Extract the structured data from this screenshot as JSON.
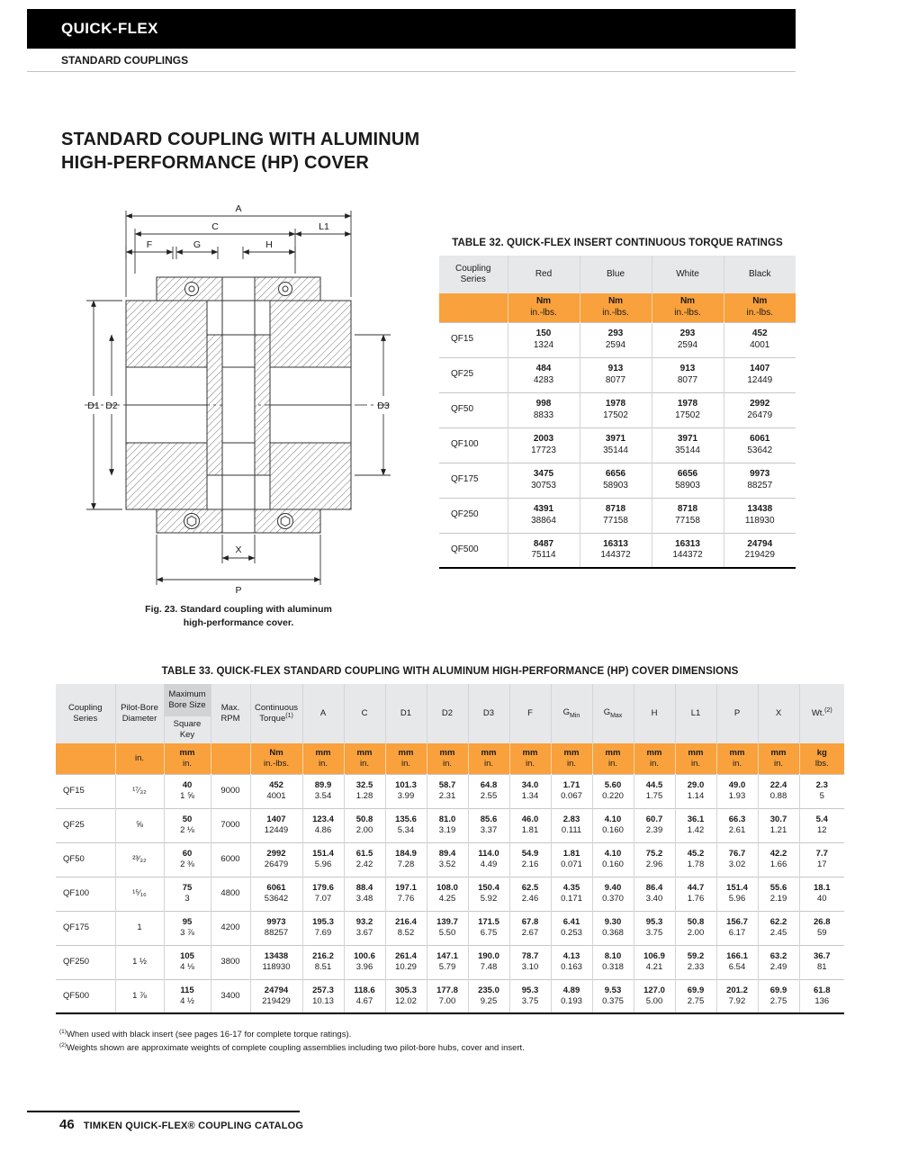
{
  "colors": {
    "accent": "#F9A13C",
    "header_gray": "#E7E8E9",
    "dark_gray": "#D2D3D4",
    "bar_black": "#000000"
  },
  "page": {
    "brand": "QUICK-FLEX",
    "section": "STANDARD COUPLINGS",
    "title_line1": "STANDARD COUPLING WITH ALUMINUM",
    "title_line2": "HIGH-PERFORMANCE (HP) COVER",
    "figure_caption_line1": "Fig. 23. Standard coupling with aluminum",
    "figure_caption_line2": "high-performance cover.",
    "footer_page_number": "46",
    "footer_text": "TIMKEN QUICK-FLEX® COUPLING CATALOG"
  },
  "drawing": {
    "labels": {
      "A": "A",
      "C": "C",
      "L1": "L1",
      "F": "F",
      "G": "G",
      "H": "H",
      "D1": "D1",
      "D2": "D2",
      "D3": "D3",
      "X": "X",
      "P": "P"
    }
  },
  "table32": {
    "title": "TABLE 32. QUICK-FLEX INSERT CONTINUOUS TORQUE RATINGS",
    "series_header": "Coupling Series",
    "color_headers": [
      "Red",
      "Blue",
      "White",
      "Black"
    ],
    "unit_metric": "Nm",
    "unit_imperial": "in.-lbs.",
    "rows": [
      {
        "series": "QF15",
        "values": [
          [
            "150",
            "1324"
          ],
          [
            "293",
            "2594"
          ],
          [
            "293",
            "2594"
          ],
          [
            "452",
            "4001"
          ]
        ]
      },
      {
        "series": "QF25",
        "values": [
          [
            "484",
            "4283"
          ],
          [
            "913",
            "8077"
          ],
          [
            "913",
            "8077"
          ],
          [
            "1407",
            "12449"
          ]
        ]
      },
      {
        "series": "QF50",
        "values": [
          [
            "998",
            "8833"
          ],
          [
            "1978",
            "17502"
          ],
          [
            "1978",
            "17502"
          ],
          [
            "2992",
            "26479"
          ]
        ]
      },
      {
        "series": "QF100",
        "values": [
          [
            "2003",
            "17723"
          ],
          [
            "3971",
            "35144"
          ],
          [
            "3971",
            "35144"
          ],
          [
            "6061",
            "53642"
          ]
        ]
      },
      {
        "series": "QF175",
        "values": [
          [
            "3475",
            "30753"
          ],
          [
            "6656",
            "58903"
          ],
          [
            "6656",
            "58903"
          ],
          [
            "9973",
            "88257"
          ]
        ]
      },
      {
        "series": "QF250",
        "values": [
          [
            "4391",
            "38864"
          ],
          [
            "8718",
            "77158"
          ],
          [
            "8718",
            "77158"
          ],
          [
            "13438",
            "118930"
          ]
        ]
      },
      {
        "series": "QF500",
        "values": [
          [
            "8487",
            "75114"
          ],
          [
            "16313",
            "144372"
          ],
          [
            "16313",
            "144372"
          ],
          [
            "24794",
            "219429"
          ]
        ]
      }
    ]
  },
  "table33": {
    "title": "TABLE 33. QUICK-FLEX STANDARD COUPLING WITH ALUMINUM HIGH-PERFORMANCE (HP) COVER DIMENSIONS",
    "headers": {
      "series": "Coupling Series",
      "pilot": "Pilot-Bore Diameter",
      "bore_top": "Maximum Bore Size",
      "bore_bottom": "Square Key",
      "rpm": "Max. RPM",
      "torque": "Continuous Torque",
      "torque_sup": "(1)",
      "dims": [
        {
          "t": "A"
        },
        {
          "t": "C"
        },
        {
          "t": "D1"
        },
        {
          "t": "D2"
        },
        {
          "t": "D3"
        },
        {
          "t": "F"
        },
        {
          "t": "G",
          "sub": "Min"
        },
        {
          "t": "G",
          "sub": "Max"
        },
        {
          "t": "H"
        },
        {
          "t": "L1"
        },
        {
          "t": "P"
        },
        {
          "t": "X"
        }
      ],
      "wt": "Wt.",
      "wt_sup": "(2)"
    },
    "units": {
      "pilot": "in.",
      "metric": "mm",
      "imperial": "in.",
      "torque_metric": "Nm",
      "torque_imperial": "in.-lbs.",
      "wt_metric": "kg",
      "wt_imperial": "lbs."
    },
    "rows": [
      {
        "series": "QF15",
        "pilot": "¹⁷⁄₃₂",
        "bore": [
          "40",
          "1 ⅝"
        ],
        "rpm": "9000",
        "torque": [
          "452",
          "4001"
        ],
        "dims": [
          [
            "89.9",
            "3.54"
          ],
          [
            "32.5",
            "1.28"
          ],
          [
            "101.3",
            "3.99"
          ],
          [
            "58.7",
            "2.31"
          ],
          [
            "64.8",
            "2.55"
          ],
          [
            "34.0",
            "1.34"
          ],
          [
            "1.71",
            "0.067"
          ],
          [
            "5.60",
            "0.220"
          ],
          [
            "44.5",
            "1.75"
          ],
          [
            "29.0",
            "1.14"
          ],
          [
            "49.0",
            "1.93"
          ],
          [
            "22.4",
            "0.88"
          ]
        ],
        "wt": [
          "2.3",
          "5"
        ]
      },
      {
        "series": "QF25",
        "pilot": "⅝",
        "bore": [
          "50",
          "2 ⅛"
        ],
        "rpm": "7000",
        "torque": [
          "1407",
          "12449"
        ],
        "dims": [
          [
            "123.4",
            "4.86"
          ],
          [
            "50.8",
            "2.00"
          ],
          [
            "135.6",
            "5.34"
          ],
          [
            "81.0",
            "3.19"
          ],
          [
            "85.6",
            "3.37"
          ],
          [
            "46.0",
            "1.81"
          ],
          [
            "2.83",
            "0.111"
          ],
          [
            "4.10",
            "0.160"
          ],
          [
            "60.7",
            "2.39"
          ],
          [
            "36.1",
            "1.42"
          ],
          [
            "66.3",
            "2.61"
          ],
          [
            "30.7",
            "1.21"
          ]
        ],
        "wt": [
          "5.4",
          "12"
        ]
      },
      {
        "series": "QF50",
        "pilot": "²³⁄₃₂",
        "bore": [
          "60",
          "2 ⅜"
        ],
        "rpm": "6000",
        "torque": [
          "2992",
          "26479"
        ],
        "dims": [
          [
            "151.4",
            "5.96"
          ],
          [
            "61.5",
            "2.42"
          ],
          [
            "184.9",
            "7.28"
          ],
          [
            "89.4",
            "3.52"
          ],
          [
            "114.0",
            "4.49"
          ],
          [
            "54.9",
            "2.16"
          ],
          [
            "1.81",
            "0.071"
          ],
          [
            "4.10",
            "0.160"
          ],
          [
            "75.2",
            "2.96"
          ],
          [
            "45.2",
            "1.78"
          ],
          [
            "76.7",
            "3.02"
          ],
          [
            "42.2",
            "1.66"
          ]
        ],
        "wt": [
          "7.7",
          "17"
        ]
      },
      {
        "series": "QF100",
        "pilot": "¹⁵⁄₁₆",
        "bore": [
          "75",
          "3"
        ],
        "rpm": "4800",
        "torque": [
          "6061",
          "53642"
        ],
        "dims": [
          [
            "179.6",
            "7.07"
          ],
          [
            "88.4",
            "3.48"
          ],
          [
            "197.1",
            "7.76"
          ],
          [
            "108.0",
            "4.25"
          ],
          [
            "150.4",
            "5.92"
          ],
          [
            "62.5",
            "2.46"
          ],
          [
            "4.35",
            "0.171"
          ],
          [
            "9.40",
            "0.370"
          ],
          [
            "86.4",
            "3.40"
          ],
          [
            "44.7",
            "1.76"
          ],
          [
            "151.4",
            "5.96"
          ],
          [
            "55.6",
            "2.19"
          ]
        ],
        "wt": [
          "18.1",
          "40"
        ]
      },
      {
        "series": "QF175",
        "pilot": "1",
        "bore": [
          "95",
          "3 ⅞"
        ],
        "rpm": "4200",
        "torque": [
          "9973",
          "88257"
        ],
        "dims": [
          [
            "195.3",
            "7.69"
          ],
          [
            "93.2",
            "3.67"
          ],
          [
            "216.4",
            "8.52"
          ],
          [
            "139.7",
            "5.50"
          ],
          [
            "171.5",
            "6.75"
          ],
          [
            "67.8",
            "2.67"
          ],
          [
            "6.41",
            "0.253"
          ],
          [
            "9.30",
            "0.368"
          ],
          [
            "95.3",
            "3.75"
          ],
          [
            "50.8",
            "2.00"
          ],
          [
            "156.7",
            "6.17"
          ],
          [
            "62.2",
            "2.45"
          ]
        ],
        "wt": [
          "26.8",
          "59"
        ]
      },
      {
        "series": "QF250",
        "pilot": "1 ½",
        "bore": [
          "105",
          "4 ⅛"
        ],
        "rpm": "3800",
        "torque": [
          "13438",
          "118930"
        ],
        "dims": [
          [
            "216.2",
            "8.51"
          ],
          [
            "100.6",
            "3.96"
          ],
          [
            "261.4",
            "10.29"
          ],
          [
            "147.1",
            "5.79"
          ],
          [
            "190.0",
            "7.48"
          ],
          [
            "78.7",
            "3.10"
          ],
          [
            "4.13",
            "0.163"
          ],
          [
            "8.10",
            "0.318"
          ],
          [
            "106.9",
            "4.21"
          ],
          [
            "59.2",
            "2.33"
          ],
          [
            "166.1",
            "6.54"
          ],
          [
            "63.2",
            "2.49"
          ]
        ],
        "wt": [
          "36.7",
          "81"
        ]
      },
      {
        "series": "QF500",
        "pilot": "1 ⅞",
        "bore": [
          "115",
          "4 ½"
        ],
        "rpm": "3400",
        "torque": [
          "24794",
          "219429"
        ],
        "dims": [
          [
            "257.3",
            "10.13"
          ],
          [
            "118.6",
            "4.67"
          ],
          [
            "305.3",
            "12.02"
          ],
          [
            "177.8",
            "7.00"
          ],
          [
            "235.0",
            "9.25"
          ],
          [
            "95.3",
            "3.75"
          ],
          [
            "4.89",
            "0.193"
          ],
          [
            "9.53",
            "0.375"
          ],
          [
            "127.0",
            "5.00"
          ],
          [
            "69.9",
            "2.75"
          ],
          [
            "201.2",
            "7.92"
          ],
          [
            "69.9",
            "2.75"
          ]
        ],
        "wt": [
          "61.8",
          "136"
        ]
      }
    ]
  },
  "footnotes": [
    {
      "sup": "(1)",
      "text": "When used with black insert (see pages 16-17 for complete torque ratings)."
    },
    {
      "sup": "(2)",
      "text": "Weights shown are approximate weights of complete coupling assemblies including two pilot-bore hubs, cover and insert."
    }
  ]
}
